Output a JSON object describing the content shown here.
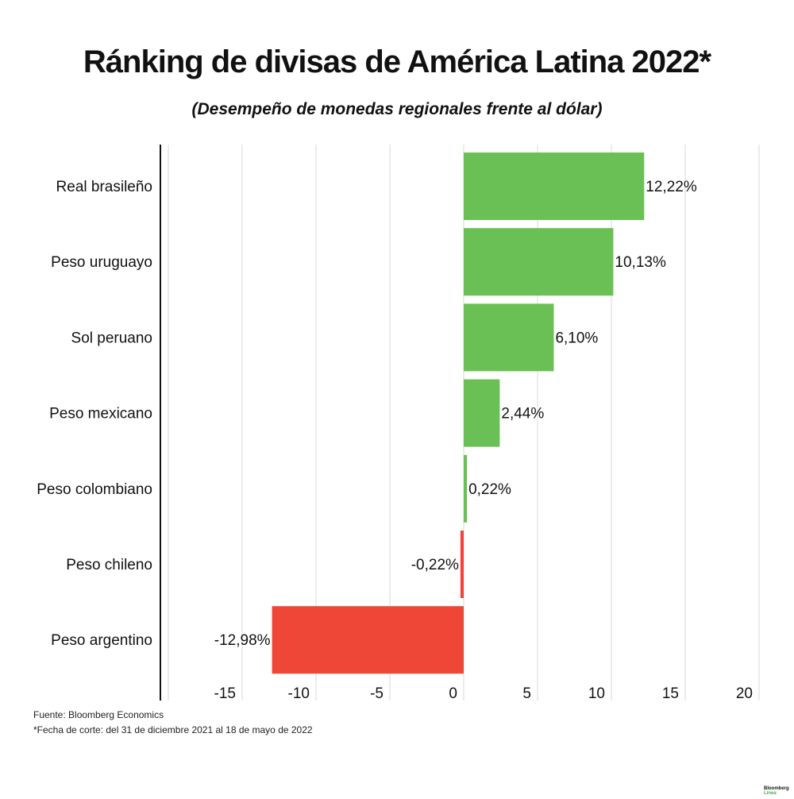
{
  "title": "Ránking de divisas de América Latina 2022*",
  "subtitle": "(Desempeño de monedas regionales frente al dólar)",
  "source": "Fuente: Bloomberg Economics",
  "footnote": "*Fecha de corte: del 31 de diciembre 2021 al 18 de mayo de 2022",
  "logo": {
    "line1": "Bloomberg",
    "line2": "Línea"
  },
  "colors": {
    "positive": "#6abf55",
    "negative": "#ee4738"
  },
  "chart_data": {
    "type": "bar",
    "orientation": "horizontal",
    "categories": [
      "Real brasileño",
      "Peso uruguayo",
      "Sol peruano",
      "Peso mexicano",
      "Peso colombiano",
      "Peso chileno",
      "Peso argentino"
    ],
    "values": [
      12.22,
      10.13,
      6.1,
      2.44,
      0.22,
      -0.22,
      -12.98
    ],
    "data_labels": [
      "12,22%",
      "10,13%",
      "6,10%",
      "2,44%",
      "0,22%",
      "-0,22%",
      "-12,98%"
    ],
    "xlim": [
      -20,
      20
    ],
    "xticks": [
      -15,
      -10,
      -5,
      0,
      5,
      10,
      15,
      20
    ],
    "grid": true
  }
}
